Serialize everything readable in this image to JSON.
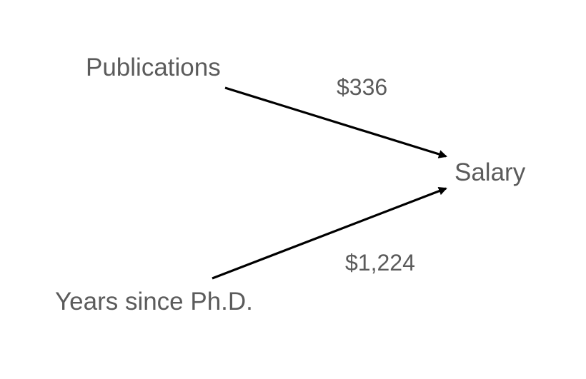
{
  "nodes": {
    "publications": "Publications",
    "years_since_phd": "Years since Ph.D.",
    "salary": "Salary"
  },
  "edges": {
    "publications_to_salary": {
      "label": "$336"
    },
    "years_to_salary": {
      "label": "$1,224"
    }
  },
  "colors": {
    "text": "#5b5b5b",
    "arrow": "#000000",
    "background": "#ffffff"
  }
}
